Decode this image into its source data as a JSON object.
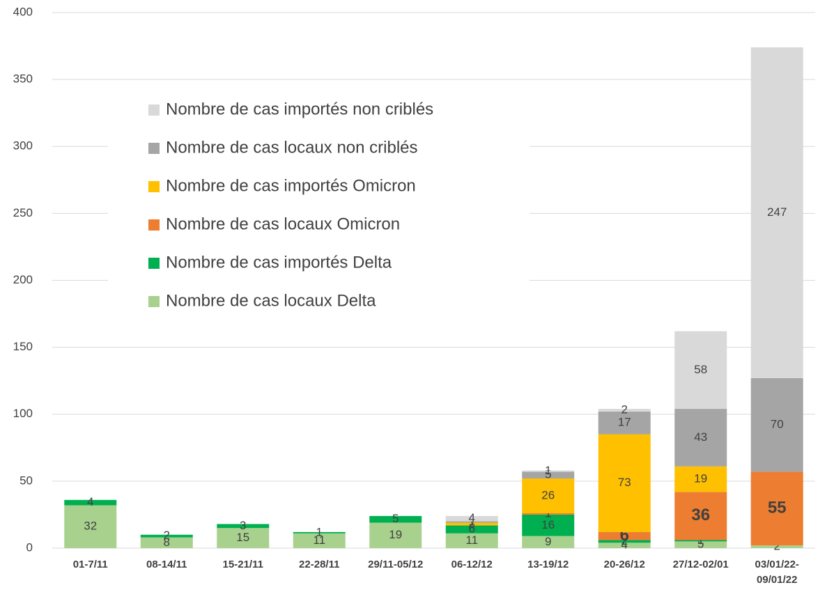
{
  "chart_data": {
    "type": "stacked_bar",
    "categories": [
      "01-7/11",
      "08-14/11",
      "15-21/11",
      "22-28/11",
      "29/11-05/12",
      "06-12/12",
      "13-19/12",
      "20-26/12",
      "27/12-02/01",
      "03/01/22-09/01/22"
    ],
    "series": [
      {
        "name": "Nombre de cas locaux Delta",
        "color": "#a9d18e",
        "values": [
          32,
          8,
          15,
          11,
          19,
          11,
          9,
          4,
          5,
          2
        ]
      },
      {
        "name": "Nombre de cas importés Delta",
        "color": "#00b050",
        "values": [
          4,
          2,
          3,
          1,
          5,
          6,
          16,
          2,
          1,
          0
        ]
      },
      {
        "name": "Nombre de cas locaux Omicron",
        "color": "#ed7d31",
        "values": [
          0,
          0,
          0,
          0,
          0,
          0,
          1,
          6,
          36,
          55
        ]
      },
      {
        "name": "Nombre de cas importés Omicron",
        "color": "#ffc000",
        "values": [
          0,
          0,
          0,
          0,
          0,
          2,
          26,
          73,
          19,
          0
        ]
      },
      {
        "name": "Nombre de cas locaux non criblés",
        "color": "#a5a5a5",
        "values": [
          0,
          0,
          0,
          0,
          0,
          1,
          5,
          17,
          43,
          70
        ]
      },
      {
        "name": "Nombre de cas importés non criblés",
        "color": "#d9d9d9",
        "values": [
          0,
          0,
          0,
          0,
          0,
          4,
          1,
          2,
          58,
          247
        ]
      }
    ],
    "ylim": [
      0,
      400
    ],
    "yticks": [
      0,
      50,
      100,
      150,
      200,
      250,
      300,
      350,
      400
    ],
    "grid": true
  }
}
